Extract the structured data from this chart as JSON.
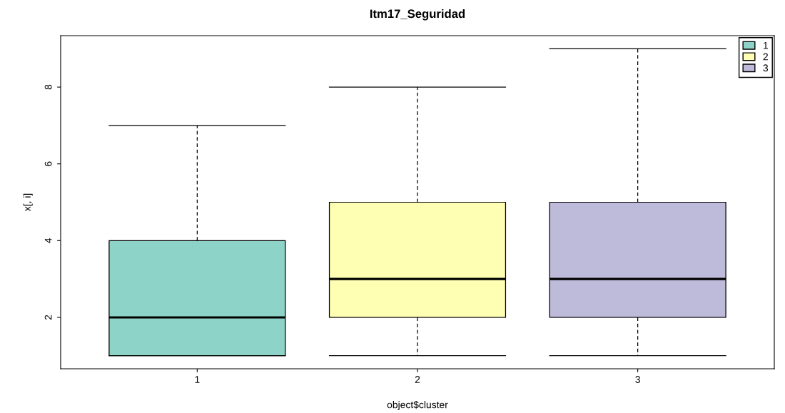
{
  "chart_data": {
    "type": "box",
    "title": "Itm17_Seguridad",
    "xlabel": "object$cluster",
    "ylabel": "x[, i]",
    "categories": [
      "1",
      "2",
      "3"
    ],
    "series": [
      {
        "name": "1",
        "color": "#8dd3c7",
        "boxes": [
          {
            "low": 1,
            "q1": 1,
            "median": 2,
            "q3": 4,
            "high": 7
          },
          null,
          null
        ]
      },
      {
        "name": "2",
        "color": "#ffffb3",
        "boxes": [
          null,
          {
            "low": 1,
            "q1": 2,
            "median": 3,
            "q3": 5,
            "high": 8
          },
          null
        ]
      },
      {
        "name": "3",
        "color": "#bebada",
        "boxes": [
          null,
          null,
          {
            "low": 1,
            "q1": 2,
            "median": 3,
            "q3": 5,
            "high": 9
          }
        ]
      }
    ],
    "ylim": [
      0.66,
      9.34
    ],
    "yticks": [
      2,
      4,
      6,
      8
    ],
    "grid": false,
    "legend": "top right"
  }
}
